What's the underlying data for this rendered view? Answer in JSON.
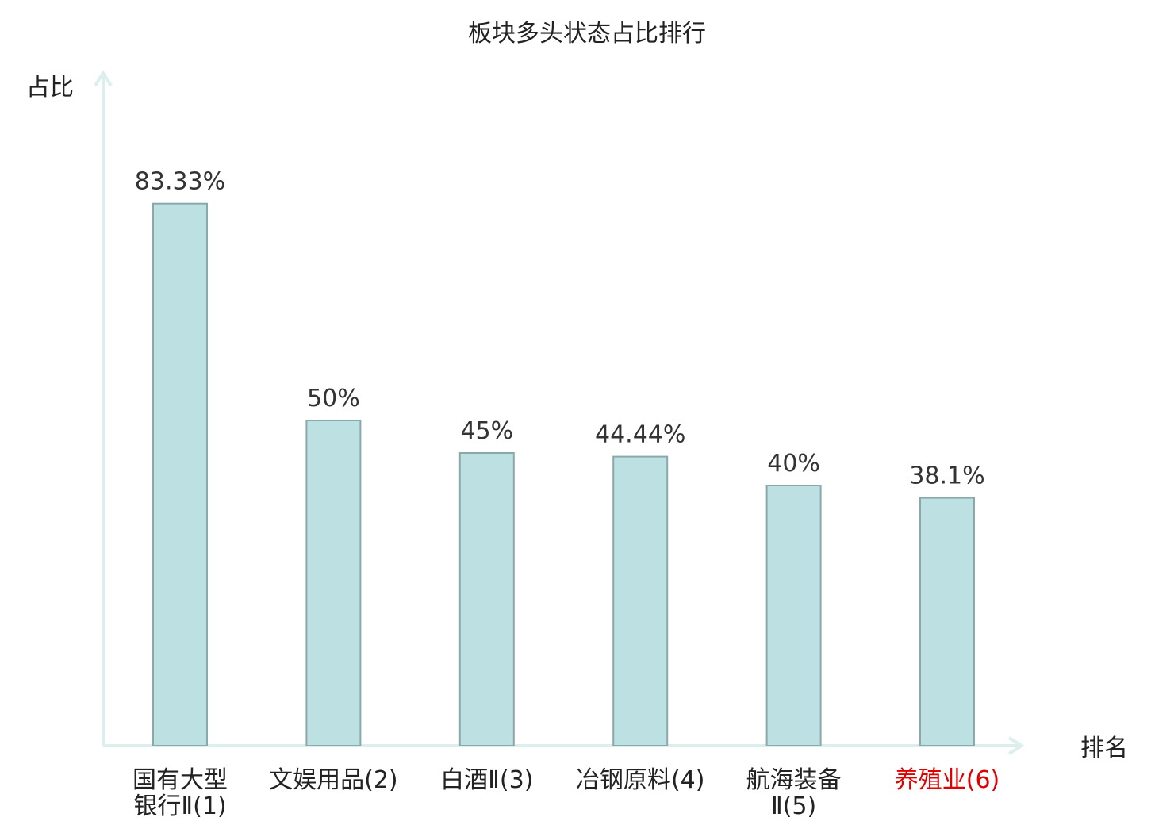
{
  "chart_data": {
    "type": "bar",
    "title": "板块多头状态占比排行",
    "xlabel": "排名",
    "ylabel": "占比",
    "ylim": [
      0,
      100
    ],
    "grid": false,
    "categories": [
      {
        "name_lines": [
          "国有大型",
          "银行Ⅱ"
        ],
        "rank": "(1)",
        "highlight": false
      },
      {
        "name_lines": [
          "文娱用品"
        ],
        "rank": "(2)",
        "highlight": false
      },
      {
        "name_lines": [
          "白酒Ⅱ"
        ],
        "rank": "(3)",
        "highlight": false
      },
      {
        "name_lines": [
          "冶钢原料"
        ],
        "rank": "(4)",
        "highlight": false
      },
      {
        "name_lines": [
          "航海装备",
          "Ⅱ"
        ],
        "rank": "(5)",
        "highlight": false
      },
      {
        "name_lines": [
          "养殖业"
        ],
        "rank": "(6)",
        "highlight": true
      }
    ],
    "values": [
      83.33,
      50,
      45,
      44.44,
      40,
      38.1
    ],
    "value_labels": [
      "83.33%",
      "50%",
      "45%",
      "44.44%",
      "40%",
      "38.1%"
    ]
  },
  "colors": {
    "bar_fill": "#bde0e3",
    "bar_stroke": "#8aa9ab",
    "axis": "#dcefed",
    "text": "#222222",
    "value_label": "#333333",
    "highlight": "#e00000"
  }
}
